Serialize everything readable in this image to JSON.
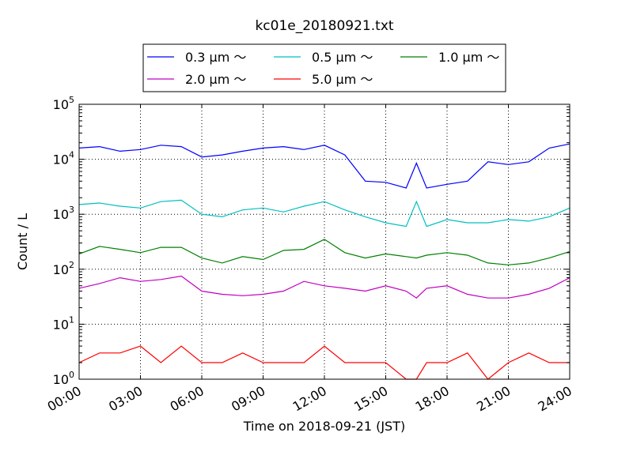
{
  "chart_data": {
    "type": "line",
    "title": "kc01e_20180921.txt",
    "xlabel": "Time on 2018-09-21 (JST)",
    "ylabel": "Count / L",
    "y_scale": "log",
    "ylim": [
      1,
      100000
    ],
    "xlim": [
      "00:00",
      "24:00"
    ],
    "grid": true,
    "legend_placement": "top",
    "x_ticks": [
      "00:00",
      "03:00",
      "06:00",
      "09:00",
      "12:00",
      "15:00",
      "18:00",
      "21:00",
      "24:00"
    ],
    "y_ticks": [
      {
        "base": "10",
        "exp": "0"
      },
      {
        "base": "10",
        "exp": "1"
      },
      {
        "base": "10",
        "exp": "2"
      },
      {
        "base": "10",
        "exp": "3"
      },
      {
        "base": "10",
        "exp": "4"
      },
      {
        "base": "10",
        "exp": "5"
      }
    ],
    "x_hours": [
      0,
      1,
      2,
      3,
      4,
      5,
      6,
      7,
      8,
      9,
      10,
      11,
      12,
      13,
      14,
      15,
      16,
      16.5,
      17,
      18,
      19,
      20,
      21,
      22,
      23,
      24
    ],
    "series": [
      {
        "name": "0.3 μm ～",
        "color": "#0000ff",
        "values": [
          16000,
          17000,
          14000,
          15000,
          18000,
          17000,
          11000,
          12000,
          14000,
          16000,
          17000,
          15000,
          18000,
          12000,
          4000,
          3800,
          3000,
          8500,
          3000,
          3500,
          4000,
          9000,
          8000,
          9000,
          16000,
          19000
        ]
      },
      {
        "name": "0.5 μm ～",
        "color": "#00bfbf",
        "values": [
          1500,
          1600,
          1400,
          1300,
          1700,
          1800,
          1000,
          900,
          1200,
          1300,
          1100,
          1400,
          1700,
          1200,
          900,
          700,
          600,
          1700,
          600,
          800,
          700,
          700,
          800,
          750,
          900,
          1300
        ]
      },
      {
        "name": "1.0 μm ～",
        "color": "#008000",
        "values": [
          190,
          260,
          230,
          200,
          250,
          250,
          160,
          130,
          170,
          150,
          220,
          230,
          350,
          200,
          160,
          190,
          170,
          160,
          180,
          200,
          180,
          130,
          120,
          130,
          160,
          210
        ]
      },
      {
        "name": "2.0 μm ～",
        "color": "#bf00bf",
        "values": [
          45,
          55,
          70,
          60,
          65,
          75,
          40,
          35,
          33,
          35,
          40,
          60,
          50,
          45,
          40,
          50,
          40,
          30,
          45,
          50,
          35,
          30,
          30,
          35,
          45,
          70
        ]
      },
      {
        "name": "5.0 μm ～",
        "color": "#ff0000",
        "values": [
          2,
          3,
          3,
          4,
          2,
          4,
          2,
          2,
          3,
          2,
          2,
          2,
          4,
          2,
          2,
          2,
          1,
          1,
          2,
          2,
          3,
          1,
          2,
          3,
          2,
          2
        ]
      }
    ]
  }
}
